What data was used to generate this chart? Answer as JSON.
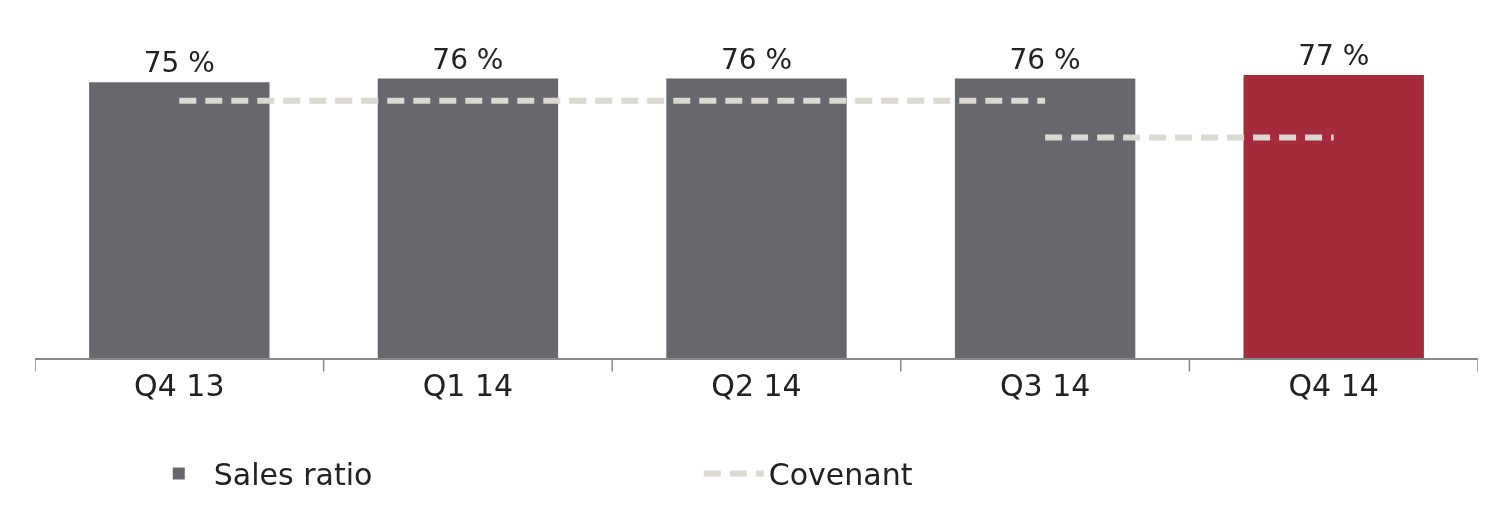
{
  "chart_data": {
    "type": "bar",
    "categories": [
      "Q4 13",
      "Q1 14",
      "Q2 14",
      "Q3 14",
      "Q4 14"
    ],
    "series": [
      {
        "name": "Sales ratio",
        "colors": [
          "#66686d",
          "#66686d",
          "#66686d",
          "#66686d",
          "#a52a3c"
        ],
        "values": [
          75,
          76,
          76,
          76,
          77
        ],
        "value_labels": [
          "75 %",
          "76 %",
          "76 %",
          "76 %",
          "77 %"
        ]
      },
      {
        "name": "Covenant",
        "type": "line",
        "color": "#dcd8d2",
        "line_style": "dashed",
        "marker": "none",
        "values": [
          70,
          70,
          70,
          70,
          null
        ]
      },
      {
        "type": "line",
        "color": "#dcd8d2",
        "line_style": "dashed",
        "marker": "none",
        "values": [
          null,
          null,
          null,
          60,
          60
        ]
      }
    ],
    "legend": "bottom",
    "tick_labels": "x"
  }
}
